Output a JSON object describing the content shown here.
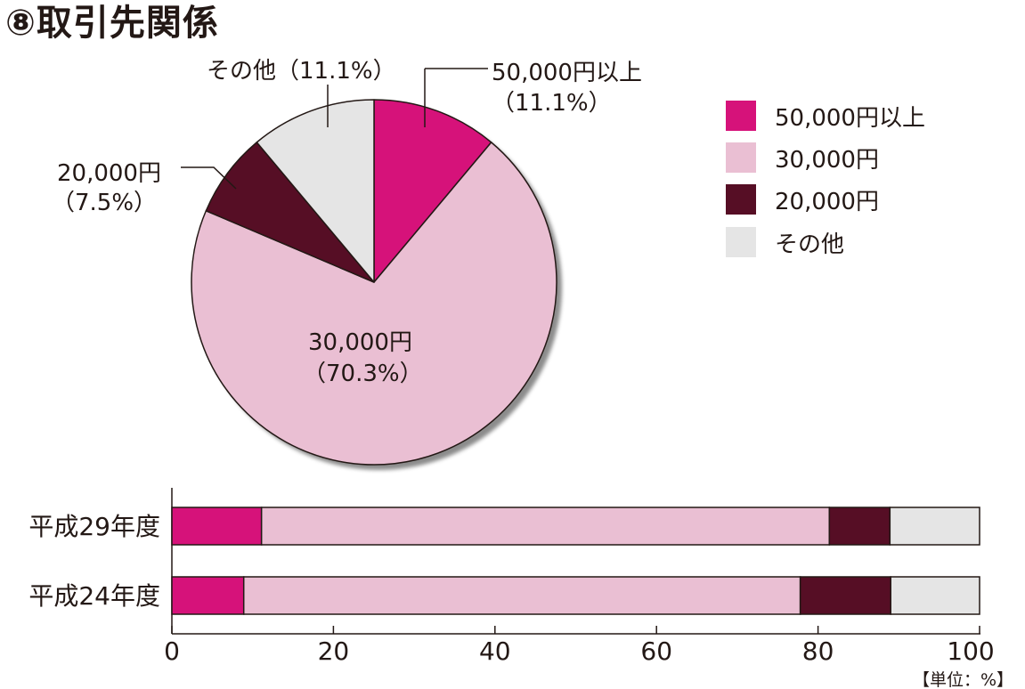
{
  "title": "⑧取引先関係",
  "unit_note": "【単位：%】",
  "colors": {
    "50000_over": "#d6127a",
    "30000": "#eabfd3",
    "20000": "#560e25",
    "other": "#e5e5e5",
    "outline": "#231815"
  },
  "chart_data": [
    {
      "type": "pie",
      "categories": [
        "50,000円以上",
        "30,000円",
        "20,000円",
        "その他"
      ],
      "values": [
        11.1,
        70.3,
        7.5,
        11.1
      ],
      "labels": [
        {
          "name": "50,000円以上",
          "pct": "（11.1%）"
        },
        {
          "name": "30,000円",
          "pct": "（70.3%）"
        },
        {
          "name": "20,000円",
          "pct": "（7.5%）"
        },
        {
          "name": "その他",
          "pct": "（11.1%）"
        }
      ],
      "legend": {
        "position": "right",
        "entries": [
          "50,000円以上",
          "30,000円",
          "20,000円",
          "その他"
        ]
      }
    },
    {
      "type": "bar",
      "orientation": "horizontal",
      "stacked": true,
      "categories": [
        "平成29年度",
        "平成24年度"
      ],
      "series": [
        {
          "name": "50,000円以上",
          "values": [
            11.1,
            8.9
          ]
        },
        {
          "name": "30,000円",
          "values": [
            70.3,
            68.9
          ]
        },
        {
          "name": "20,000円",
          "values": [
            7.5,
            11.2
          ]
        },
        {
          "name": "その他",
          "values": [
            11.1,
            11.0
          ]
        }
      ],
      "xlim": [
        0,
        100
      ],
      "xticks": [
        "0",
        "20",
        "40",
        "60",
        "80",
        "100"
      ]
    }
  ]
}
